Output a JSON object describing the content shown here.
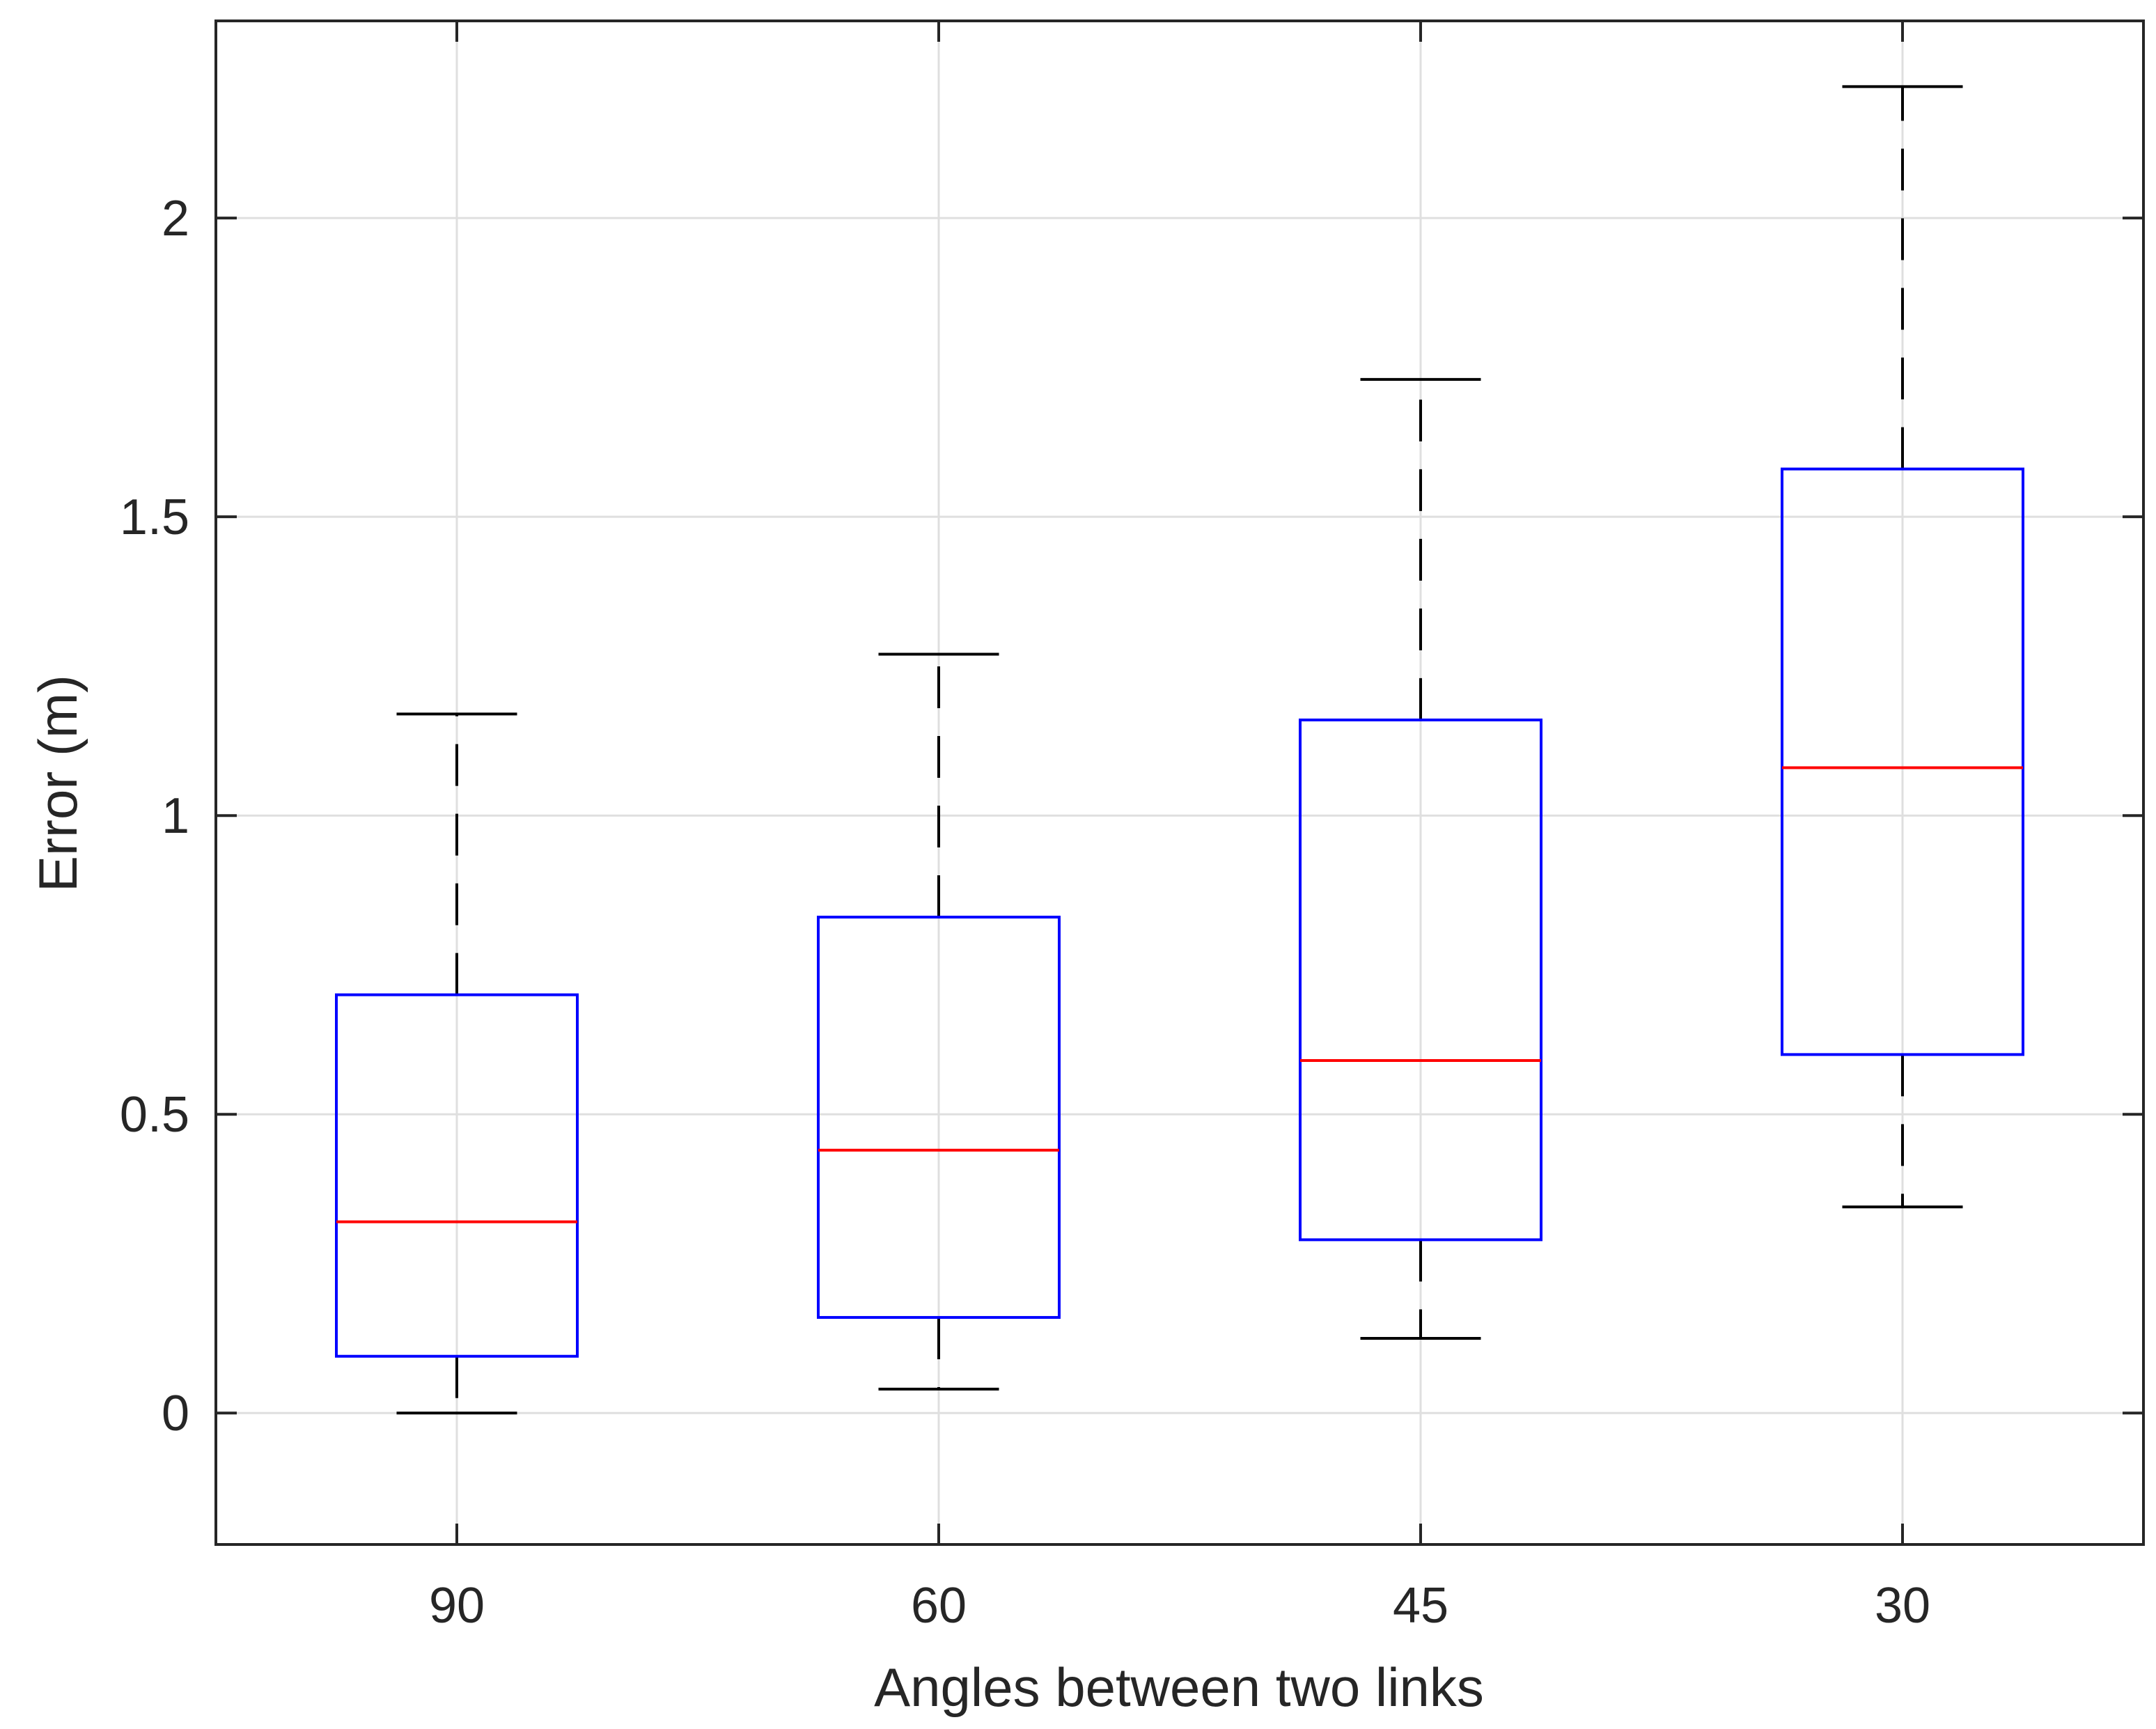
{
  "chart_data": {
    "type": "boxplot",
    "title": "",
    "xlabel": "Angles between two links",
    "ylabel": "Error (m)",
    "ylim": [
      -0.22,
      2.33
    ],
    "yticks": [
      0,
      0.5,
      1,
      1.5,
      2
    ],
    "ytick_labels": [
      "0",
      "0.5",
      "1",
      "1.5",
      "2"
    ],
    "grid": true,
    "categories": [
      "90",
      "60",
      "45",
      "30"
    ],
    "boxes": [
      {
        "label": "90",
        "whisker_low": 0.0,
        "q1": 0.095,
        "median": 0.32,
        "q3": 0.7,
        "whisker_high": 1.17
      },
      {
        "label": "60",
        "whisker_low": 0.04,
        "q1": 0.16,
        "median": 0.44,
        "q3": 0.83,
        "whisker_high": 1.27
      },
      {
        "label": "45",
        "whisker_low": 0.125,
        "q1": 0.29,
        "median": 0.59,
        "q3": 1.16,
        "whisker_high": 1.73
      },
      {
        "label": "30",
        "whisker_low": 0.345,
        "q1": 0.6,
        "median": 1.08,
        "q3": 1.58,
        "whisker_high": 2.22
      }
    ],
    "colors": {
      "box": "#0000ff",
      "median": "#ff0000",
      "whisker": "#000000",
      "grid": "#dfdfdf",
      "axes": "#262626",
      "text": "#262626"
    }
  }
}
